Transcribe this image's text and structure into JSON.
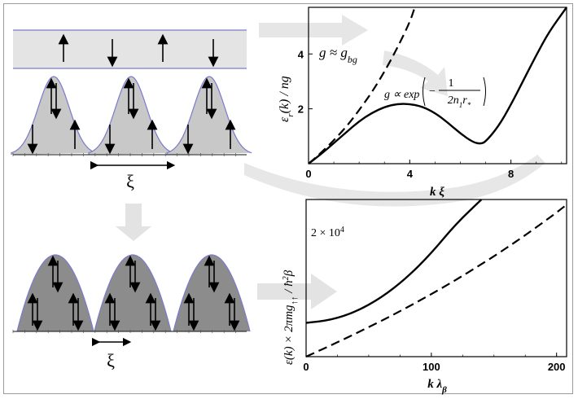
{
  "schematic": {
    "xi_label_top": "ξ",
    "xi_label_bottom": "ξ",
    "top_band_spins": [
      "up",
      "down",
      "up",
      "down"
    ],
    "middle_row": {
      "peaks": 3,
      "peak_top_spins": "pair",
      "peak_lower_spins": [
        [
          "down",
          "up"
        ],
        [
          "down",
          "up"
        ],
        [
          "down",
          "up"
        ]
      ]
    },
    "bottom_row": {
      "peaks": 3,
      "peak_top_spins": "pair",
      "peak_lower_spins": "two-pairs"
    }
  },
  "chart_data": [
    {
      "type": "line",
      "title": "",
      "xlabel": "k ξ",
      "ylabel": "ε_r(k) / ng",
      "xlim": [
        0,
        10.2
      ],
      "ylim": [
        0,
        5.7
      ],
      "xticks": [
        "0",
        "4",
        "8"
      ],
      "xtick_values": [
        0,
        4,
        8
      ],
      "yticks": [
        "2",
        "4"
      ],
      "ytick_values": [
        2,
        4
      ],
      "annotations": {
        "dashed": "g ≈ g_bg",
        "solid": "g ∝ exp(−1/(2n₁r*))"
      },
      "series": [
        {
          "style": "dashed",
          "x": [
            0,
            0.5,
            1,
            1.5,
            2,
            2.5,
            3,
            3.5,
            4,
            4.2
          ],
          "y": [
            0,
            0.4,
            0.85,
            1.35,
            1.95,
            2.6,
            3.35,
            4.2,
            5.15,
            5.7
          ]
        },
        {
          "style": "solid",
          "x": [
            0,
            0.5,
            1,
            1.5,
            2,
            2.5,
            3,
            3.5,
            4,
            4.5,
            5,
            5.5,
            6,
            6.5,
            6.8,
            7,
            7.5,
            8,
            8.5,
            9,
            9.5,
            10.2
          ],
          "y": [
            0,
            0.35,
            0.75,
            1.15,
            1.55,
            1.85,
            2.07,
            2.18,
            2.18,
            2.08,
            1.85,
            1.5,
            1.1,
            0.78,
            0.72,
            0.8,
            1.35,
            2.15,
            3.05,
            3.95,
            4.8,
            5.7
          ]
        }
      ]
    },
    {
      "type": "line",
      "title": "",
      "xlabel": "k λ_β",
      "ylabel": "ε(k) × 2πmg↑↑ / ħ²β",
      "xlim": [
        0,
        208
      ],
      "ylim": [
        0,
        3.95
      ],
      "xticks": [
        "0",
        "100",
        "200"
      ],
      "xtick_values": [
        0,
        100,
        200
      ],
      "y_annotation": "2 × 10⁴",
      "series": [
        {
          "style": "solid",
          "x": [
            0,
            20,
            40,
            60,
            80,
            100,
            120,
            140
          ],
          "y": [
            0.85,
            0.92,
            1.13,
            1.48,
            1.97,
            2.6,
            3.35,
            3.95
          ]
        },
        {
          "style": "dashed",
          "x": [
            0,
            25,
            50,
            75,
            100,
            125,
            150,
            175,
            200,
            208
          ],
          "y": [
            0.0,
            0.36,
            0.74,
            1.14,
            1.57,
            2.03,
            2.52,
            3.05,
            3.62,
            3.82
          ]
        }
      ]
    }
  ]
}
